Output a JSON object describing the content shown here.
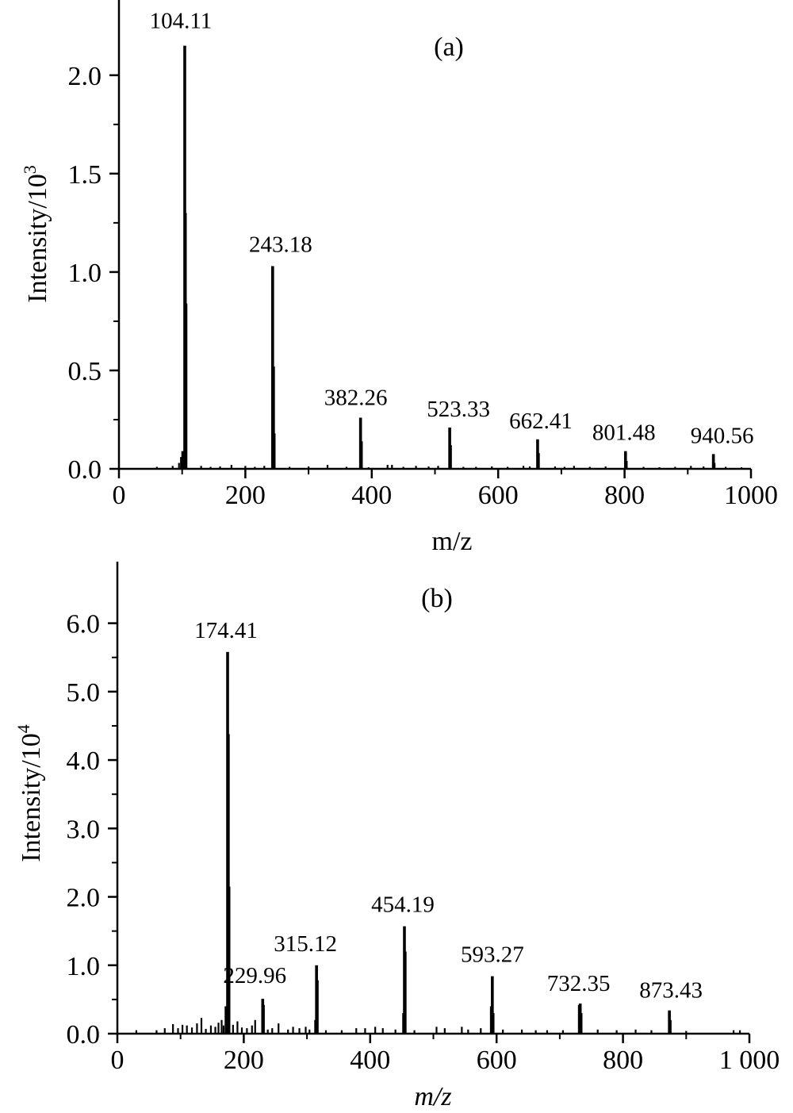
{
  "chart_data": [
    {
      "type": "bar",
      "panel_label": "(a)",
      "xlabel": "m/z",
      "xlabel_italic": false,
      "ylabel": "Intensity/10",
      "ylabel_exponent": "3",
      "xlim": [
        0,
        1000
      ],
      "ylim": [
        0,
        2.35
      ],
      "x_ticks": [
        0,
        200,
        400,
        600,
        800,
        1000
      ],
      "x_tick_labels": [
        "0",
        "200",
        "400",
        "600",
        "800",
        "1000"
      ],
      "y_ticks": [
        0,
        0.5,
        1.0,
        1.5,
        2.0
      ],
      "y_tick_labels": [
        "0.0",
        "0.5",
        "1.0",
        "1.5",
        "2.0"
      ],
      "grid": false,
      "peak_labels": [
        "104.11",
        "243.18",
        "382.26",
        "523.33",
        "662.41",
        "801.48",
        "940.56"
      ],
      "peaks": [
        {
          "x": 104.11,
          "y": 2.15
        },
        {
          "x": 105.0,
          "y": 1.3
        },
        {
          "x": 106.0,
          "y": 0.84
        },
        {
          "x": 101.0,
          "y": 0.09
        },
        {
          "x": 99.0,
          "y": 0.06
        },
        {
          "x": 243.18,
          "y": 1.03
        },
        {
          "x": 244.5,
          "y": 0.52
        },
        {
          "x": 245.5,
          "y": 0.18
        },
        {
          "x": 382.26,
          "y": 0.26
        },
        {
          "x": 383.5,
          "y": 0.14
        },
        {
          "x": 523.33,
          "y": 0.21
        },
        {
          "x": 524.5,
          "y": 0.12
        },
        {
          "x": 662.41,
          "y": 0.15
        },
        {
          "x": 663.6,
          "y": 0.08
        },
        {
          "x": 801.48,
          "y": 0.09
        },
        {
          "x": 802.6,
          "y": 0.04
        },
        {
          "x": 940.56,
          "y": 0.075
        },
        {
          "x": 941.6,
          "y": 0.03
        }
      ],
      "noise": [
        {
          "x": 60,
          "y": 0.01
        },
        {
          "x": 85,
          "y": 0.015
        },
        {
          "x": 95,
          "y": 0.03
        },
        {
          "x": 130,
          "y": 0.015
        },
        {
          "x": 145,
          "y": 0.01
        },
        {
          "x": 160,
          "y": 0.012
        },
        {
          "x": 178,
          "y": 0.02
        },
        {
          "x": 200,
          "y": 0.015
        },
        {
          "x": 215,
          "y": 0.01
        },
        {
          "x": 230,
          "y": 0.015
        },
        {
          "x": 270,
          "y": 0.01
        },
        {
          "x": 300,
          "y": 0.012
        },
        {
          "x": 330,
          "y": 0.02
        },
        {
          "x": 360,
          "y": 0.01
        },
        {
          "x": 395,
          "y": 0.008
        },
        {
          "x": 425,
          "y": 0.02
        },
        {
          "x": 432,
          "y": 0.02
        },
        {
          "x": 450,
          "y": 0.01
        },
        {
          "x": 470,
          "y": 0.015
        },
        {
          "x": 490,
          "y": 0.012
        },
        {
          "x": 505,
          "y": 0.015
        },
        {
          "x": 545,
          "y": 0.01
        },
        {
          "x": 565,
          "y": 0.01
        },
        {
          "x": 590,
          "y": 0.012
        },
        {
          "x": 615,
          "y": 0.01
        },
        {
          "x": 640,
          "y": 0.015
        },
        {
          "x": 650,
          "y": 0.012
        },
        {
          "x": 690,
          "y": 0.012
        },
        {
          "x": 705,
          "y": 0.01
        },
        {
          "x": 720,
          "y": 0.015
        },
        {
          "x": 745,
          "y": 0.01
        },
        {
          "x": 770,
          "y": 0.012
        },
        {
          "x": 830,
          "y": 0.01
        },
        {
          "x": 855,
          "y": 0.008
        },
        {
          "x": 880,
          "y": 0.01
        },
        {
          "x": 905,
          "y": 0.015
        },
        {
          "x": 925,
          "y": 0.012
        },
        {
          "x": 960,
          "y": 0.01
        },
        {
          "x": 985,
          "y": 0.008
        }
      ]
    },
    {
      "type": "bar",
      "panel_label": "(b)",
      "xlabel": "m/z",
      "xlabel_italic": true,
      "ylabel": "Intensity/10",
      "ylabel_exponent": "4",
      "xlim": [
        0,
        1000
      ],
      "ylim": [
        0,
        6.9
      ],
      "x_ticks": [
        0,
        200,
        400,
        600,
        800,
        1000
      ],
      "x_tick_labels": [
        "0",
        "200",
        "400",
        "600",
        "800",
        "1 000"
      ],
      "y_ticks": [
        0,
        1.0,
        2.0,
        3.0,
        4.0,
        5.0,
        6.0
      ],
      "y_tick_labels": [
        "0.0",
        "1.0",
        "2.0",
        "3.0",
        "4.0",
        "5.0",
        "6.0"
      ],
      "grid": false,
      "peak_labels": [
        "174.41",
        "229.96",
        "315.12",
        "454.19",
        "593.27",
        "732.35",
        "873.43"
      ],
      "peaks": [
        {
          "x": 174.41,
          "y": 5.58
        },
        {
          "x": 175.5,
          "y": 4.38
        },
        {
          "x": 176.5,
          "y": 2.15
        },
        {
          "x": 172.0,
          "y": 0.4
        },
        {
          "x": 229.96,
          "y": 0.51
        },
        {
          "x": 231.0,
          "y": 0.42
        },
        {
          "x": 315.12,
          "y": 1.0
        },
        {
          "x": 316.2,
          "y": 0.78
        },
        {
          "x": 313.8,
          "y": 0.2
        },
        {
          "x": 454.19,
          "y": 1.57
        },
        {
          "x": 455.3,
          "y": 1.2
        },
        {
          "x": 453.0,
          "y": 0.3
        },
        {
          "x": 593.27,
          "y": 0.84
        },
        {
          "x": 591.8,
          "y": 0.4
        },
        {
          "x": 594.4,
          "y": 0.3
        },
        {
          "x": 732.35,
          "y": 0.44
        },
        {
          "x": 731.0,
          "y": 0.42
        },
        {
          "x": 733.6,
          "y": 0.3
        },
        {
          "x": 873.43,
          "y": 0.34
        },
        {
          "x": 874.6,
          "y": 0.2
        }
      ],
      "noise": [
        {
          "x": 30,
          "y": 0.05
        },
        {
          "x": 62,
          "y": 0.05
        },
        {
          "x": 75,
          "y": 0.08
        },
        {
          "x": 88,
          "y": 0.14
        },
        {
          "x": 96,
          "y": 0.08
        },
        {
          "x": 103,
          "y": 0.13
        },
        {
          "x": 110,
          "y": 0.12
        },
        {
          "x": 118,
          "y": 0.09
        },
        {
          "x": 126,
          "y": 0.15
        },
        {
          "x": 133,
          "y": 0.23
        },
        {
          "x": 140,
          "y": 0.07
        },
        {
          "x": 148,
          "y": 0.12
        },
        {
          "x": 155,
          "y": 0.1
        },
        {
          "x": 160,
          "y": 0.16
        },
        {
          "x": 165,
          "y": 0.2
        },
        {
          "x": 168,
          "y": 0.12
        },
        {
          "x": 183,
          "y": 0.13
        },
        {
          "x": 190,
          "y": 0.18
        },
        {
          "x": 197,
          "y": 0.09
        },
        {
          "x": 205,
          "y": 0.08
        },
        {
          "x": 213,
          "y": 0.12
        },
        {
          "x": 218,
          "y": 0.2
        },
        {
          "x": 238,
          "y": 0.06
        },
        {
          "x": 245,
          "y": 0.08
        },
        {
          "x": 255,
          "y": 0.15
        },
        {
          "x": 270,
          "y": 0.06
        },
        {
          "x": 278,
          "y": 0.1
        },
        {
          "x": 288,
          "y": 0.08
        },
        {
          "x": 298,
          "y": 0.1
        },
        {
          "x": 304,
          "y": 0.06
        },
        {
          "x": 330,
          "y": 0.05
        },
        {
          "x": 355,
          "y": 0.05
        },
        {
          "x": 378,
          "y": 0.08
        },
        {
          "x": 392,
          "y": 0.08
        },
        {
          "x": 408,
          "y": 0.1
        },
        {
          "x": 420,
          "y": 0.08
        },
        {
          "x": 440,
          "y": 0.06
        },
        {
          "x": 470,
          "y": 0.05
        },
        {
          "x": 505,
          "y": 0.1
        },
        {
          "x": 518,
          "y": 0.08
        },
        {
          "x": 545,
          "y": 0.1
        },
        {
          "x": 555,
          "y": 0.06
        },
        {
          "x": 575,
          "y": 0.08
        },
        {
          "x": 610,
          "y": 0.06
        },
        {
          "x": 640,
          "y": 0.06
        },
        {
          "x": 662,
          "y": 0.05
        },
        {
          "x": 680,
          "y": 0.05
        },
        {
          "x": 705,
          "y": 0.05
        },
        {
          "x": 760,
          "y": 0.06
        },
        {
          "x": 790,
          "y": 0.05
        },
        {
          "x": 820,
          "y": 0.06
        },
        {
          "x": 845,
          "y": 0.05
        },
        {
          "x": 900,
          "y": 0.04
        },
        {
          "x": 975,
          "y": 0.05
        },
        {
          "x": 985,
          "y": 0.05
        }
      ]
    }
  ]
}
